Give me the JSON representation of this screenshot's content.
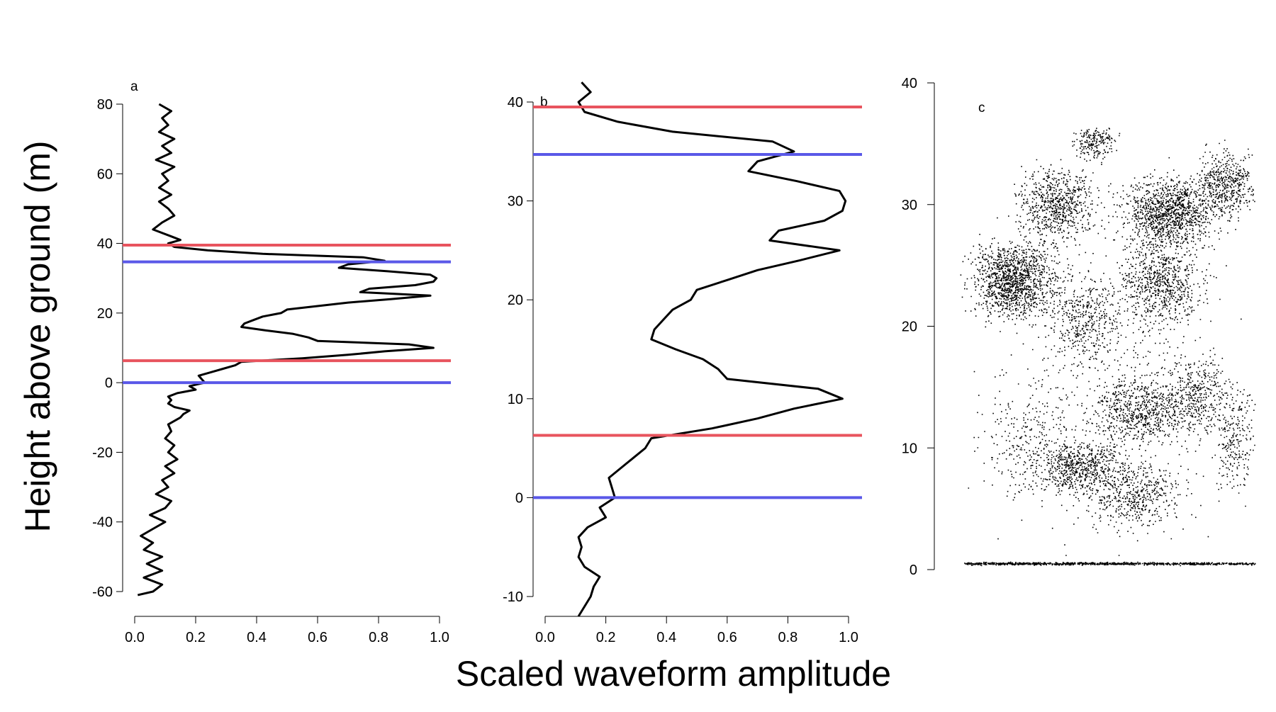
{
  "chart_data": {
    "shared": {
      "ylabel": "Height above ground (m)",
      "xlabel": "Scaled waveform amplitude",
      "colors": {
        "waveform": "#000000",
        "red_line": "#e8545e",
        "blue_line": "#5a58e8"
      }
    },
    "panels": [
      {
        "id": "a",
        "letter": "a",
        "type": "line",
        "xlim": [
          0,
          1
        ],
        "ylim": [
          -60,
          80
        ],
        "xticks": [
          0,
          0.2,
          0.4,
          0.6,
          0.8,
          1.0
        ],
        "xtick_labels": [
          "0.0",
          "0.2",
          "0.4",
          "0.6",
          "0.8",
          "1.0"
        ],
        "yticks": [
          -60,
          -40,
          -20,
          0,
          20,
          40,
          60,
          80
        ],
        "ytick_labels": [
          "-60",
          "-40",
          "-20",
          "0",
          "20",
          "40",
          "60",
          "80"
        ],
        "hlines": [
          {
            "y": 39.5,
            "color": "red"
          },
          {
            "y": 34.7,
            "color": "blue"
          },
          {
            "y": 6.3,
            "color": "red"
          },
          {
            "y": 0,
            "color": "blue"
          }
        ]
      },
      {
        "id": "b",
        "letter": "b",
        "type": "line",
        "xlim": [
          0,
          1
        ],
        "ylim": [
          -10,
          40
        ],
        "xticks": [
          0,
          0.2,
          0.4,
          0.6,
          0.8,
          1.0
        ],
        "xtick_labels": [
          "0.0",
          "0.2",
          "0.4",
          "0.6",
          "0.8",
          "1.0"
        ],
        "yticks": [
          -10,
          0,
          10,
          20,
          30,
          40
        ],
        "ytick_labels": [
          "-10",
          "0",
          "10",
          "20",
          "30",
          "40"
        ],
        "hlines": [
          {
            "y": 39.5,
            "color": "red"
          },
          {
            "y": 34.7,
            "color": "blue"
          },
          {
            "y": 6.3,
            "color": "red"
          },
          {
            "y": 0,
            "color": "blue"
          }
        ]
      },
      {
        "id": "c",
        "letter": "c",
        "type": "scatter",
        "ylim": [
          0,
          40
        ],
        "yticks": [
          0,
          10,
          20,
          30,
          40
        ],
        "ytick_labels": [
          "0",
          "10",
          "20",
          "30",
          "40"
        ]
      }
    ],
    "waveform": {
      "height": [
        -61,
        -60,
        -58,
        -56,
        -54,
        -52,
        -50,
        -48,
        -46,
        -44,
        -42,
        -40,
        -38,
        -36,
        -34,
        -32,
        -30,
        -28,
        -26,
        -24,
        -22,
        -20,
        -18,
        -16,
        -14,
        -12,
        -10,
        -9,
        -8,
        -7,
        -6,
        -5,
        -4,
        -3,
        -2,
        -1,
        0,
        1,
        2,
        3,
        4,
        5,
        6,
        7,
        8,
        9,
        10,
        11,
        12,
        13,
        14,
        15,
        16,
        17,
        18,
        19,
        20,
        21,
        22,
        23,
        24,
        25,
        26,
        27,
        28,
        29,
        30,
        31,
        32,
        33,
        34,
        35,
        36,
        37,
        38,
        39,
        40,
        41,
        42,
        44,
        46,
        48,
        50,
        52,
        54,
        56,
        58,
        60,
        62,
        64,
        66,
        68,
        70,
        72,
        74,
        76,
        78,
        80
      ],
      "amplitude": [
        0.01,
        0.06,
        0.09,
        0.03,
        0.09,
        0.04,
        0.09,
        0.03,
        0.06,
        0.02,
        0.06,
        0.1,
        0.05,
        0.1,
        0.12,
        0.07,
        0.11,
        0.09,
        0.13,
        0.1,
        0.14,
        0.11,
        0.13,
        0.1,
        0.12,
        0.11,
        0.15,
        0.16,
        0.18,
        0.13,
        0.11,
        0.12,
        0.11,
        0.14,
        0.2,
        0.18,
        0.23,
        0.22,
        0.21,
        0.25,
        0.29,
        0.33,
        0.35,
        0.55,
        0.7,
        0.82,
        0.98,
        0.9,
        0.6,
        0.57,
        0.52,
        0.43,
        0.35,
        0.36,
        0.39,
        0.42,
        0.48,
        0.5,
        0.6,
        0.7,
        0.84,
        0.97,
        0.74,
        0.77,
        0.92,
        0.98,
        0.99,
        0.97,
        0.83,
        0.67,
        0.7,
        0.82,
        0.75,
        0.42,
        0.24,
        0.13,
        0.11,
        0.15,
        0.12,
        0.06,
        0.09,
        0.13,
        0.11,
        0.08,
        0.12,
        0.08,
        0.11,
        0.09,
        0.13,
        0.07,
        0.12,
        0.09,
        0.13,
        0.08,
        0.11,
        0.09,
        0.12,
        0.08
      ]
    },
    "point_cloud": {
      "description_of_data": "dense lidar points of tree canopy",
      "ground_height": 0.5
    }
  }
}
